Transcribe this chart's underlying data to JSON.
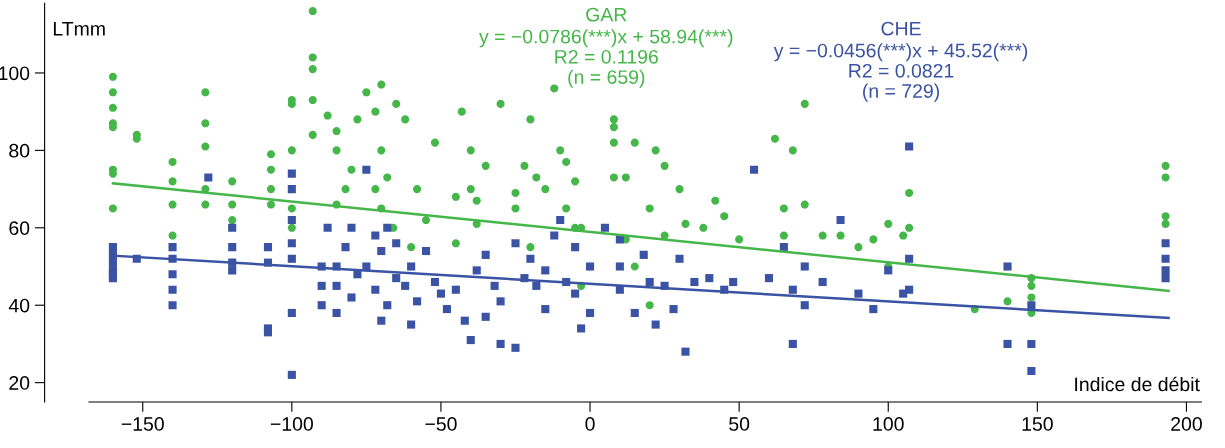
{
  "chart_data": {
    "type": "scatter",
    "xlabel": "Indice de débit",
    "ylabel": "LTmm",
    "xlim": [
      -168,
      205
    ],
    "ylim": [
      15,
      118
    ],
    "xticks": [
      -150,
      -100,
      -50,
      0,
      50,
      100,
      150,
      200
    ],
    "yticks": [
      20,
      40,
      60,
      80,
      100
    ],
    "grid": false,
    "annotations": [
      "y = −0.0786(***)x + 58.94(***)\nR2 = 0.1196\n(n = 659)",
      "y = −0.0456(***)x + 45.52(***)\nR2 = 0.0821\n(n = 729)"
    ],
    "series": [
      {
        "name": "GAR",
        "color": "#45b649",
        "marker": "circle",
        "x": [
          -160,
          -160,
          -160,
          -160,
          -160,
          -160,
          -160,
          -160,
          -152,
          -152,
          -140,
          -140,
          -140,
          -140,
          -129,
          -129,
          -129,
          -129,
          -129,
          -120,
          -120,
          -120,
          -107,
          -107,
          -107,
          -107,
          -100,
          -100,
          -100,
          -100,
          -100,
          -93,
          -93,
          -93,
          -93,
          -93,
          -88,
          -85,
          -85,
          -85,
          -82,
          -80,
          -78,
          -75,
          -72,
          -72,
          -70,
          -70,
          -70,
          -68,
          -66,
          -65,
          -62,
          -60,
          -58,
          -55,
          -52,
          -45,
          -45,
          -43,
          -40,
          -40,
          -38,
          -38,
          -35,
          -30,
          -25,
          -25,
          -22,
          -20,
          -20,
          -18,
          -15,
          -12,
          -10,
          -8,
          -8,
          -5,
          -5,
          -3,
          -3,
          8,
          8,
          8,
          8,
          12,
          12,
          15,
          15,
          20,
          20,
          22,
          25,
          25,
          30,
          32,
          38,
          42,
          45,
          50,
          62,
          65,
          65,
          68,
          72,
          72,
          78,
          84,
          90,
          95,
          100,
          100,
          105,
          107,
          107,
          129,
          140,
          148,
          148,
          148,
          148,
          193,
          193,
          193,
          193
        ],
        "values": [
          99,
          95,
          91,
          87,
          86,
          75,
          74,
          65,
          84,
          83,
          77,
          72,
          66,
          58,
          95,
          87,
          81,
          70,
          66,
          72,
          66,
          62,
          79,
          75,
          70,
          66,
          93,
          92,
          80,
          65,
          60,
          116,
          104,
          101,
          93,
          84,
          89,
          85,
          80,
          66,
          70,
          75,
          88,
          95,
          90,
          70,
          97,
          80,
          65,
          73,
          60,
          92,
          88,
          55,
          70,
          62,
          82,
          68,
          56,
          90,
          80,
          70,
          61,
          67,
          76,
          92,
          69,
          65,
          76,
          55,
          88,
          73,
          70,
          96,
          80,
          65,
          77,
          60,
          72,
          45,
          60,
          88,
          86,
          82,
          73,
          73,
          57,
          82,
          50,
          65,
          40,
          80,
          76,
          58,
          70,
          61,
          60,
          67,
          63,
          57,
          83,
          65,
          58,
          80,
          92,
          66,
          58,
          58,
          55,
          57,
          61,
          50,
          58,
          69,
          60,
          39,
          41,
          47,
          45,
          42,
          38,
          76,
          73,
          63,
          61
        ]
      },
      {
        "name": "CHE",
        "color": "#3a53a4",
        "marker": "square",
        "x": [
          -160,
          -160,
          -160,
          -160,
          -160,
          -160,
          -152,
          -140,
          -140,
          -140,
          -140,
          -140,
          -128,
          -120,
          -120,
          -120,
          -120,
          -108,
          -108,
          -108,
          -108,
          -100,
          -100,
          -100,
          -100,
          -100,
          -100,
          -100,
          -90,
          -90,
          -90,
          -88,
          -85,
          -85,
          -85,
          -82,
          -80,
          -80,
          -78,
          -75,
          -75,
          -72,
          -72,
          -70,
          -70,
          -68,
          -68,
          -65,
          -65,
          -62,
          -60,
          -60,
          -58,
          -55,
          -52,
          -50,
          -48,
          -45,
          -42,
          -40,
          -38,
          -35,
          -35,
          -32,
          -30,
          -30,
          -25,
          -25,
          -22,
          -20,
          -18,
          -15,
          -15,
          -12,
          -10,
          -8,
          -5,
          -5,
          -3,
          0,
          0,
          5,
          10,
          10,
          10,
          15,
          18,
          20,
          22,
          25,
          28,
          30,
          32,
          35,
          40,
          45,
          48,
          55,
          60,
          65,
          68,
          68,
          72,
          72,
          78,
          84,
          90,
          95,
          100,
          105,
          107,
          107,
          107,
          140,
          140,
          148,
          148,
          148,
          193,
          193,
          193,
          193
        ],
        "values": [
          55,
          53,
          51,
          49,
          48,
          47,
          52,
          55,
          52,
          48,
          44,
          40,
          73,
          60,
          55,
          51,
          49,
          55,
          51,
          34,
          33,
          74,
          70,
          62,
          56,
          52,
          38,
          22,
          50,
          45,
          40,
          60,
          50,
          45,
          38,
          55,
          60,
          42,
          48,
          75,
          50,
          58,
          44,
          54,
          36,
          60,
          40,
          56,
          47,
          45,
          50,
          35,
          41,
          54,
          46,
          43,
          39,
          44,
          36,
          31,
          49,
          53,
          37,
          45,
          41,
          30,
          56,
          29,
          47,
          52,
          45,
          49,
          39,
          58,
          62,
          46,
          55,
          43,
          34,
          50,
          38,
          60,
          57,
          50,
          44,
          38,
          53,
          46,
          35,
          45,
          39,
          52,
          28,
          46,
          47,
          44,
          46,
          75,
          47,
          55,
          44,
          30,
          50,
          40,
          46,
          62,
          43,
          39,
          49,
          43,
          81,
          52,
          44,
          50,
          30,
          40,
          30,
          23,
          56,
          52,
          49,
          47
        ]
      },
      {
        "type": "line",
        "color": "#45b649",
        "x": [
          -160,
          194
        ],
        "values": [
          71.5,
          43.7
        ]
      },
      {
        "type": "line",
        "color": "#3a53a4",
        "x": [
          -160,
          194
        ],
        "values": [
          52.8,
          36.7
        ]
      }
    ]
  }
}
